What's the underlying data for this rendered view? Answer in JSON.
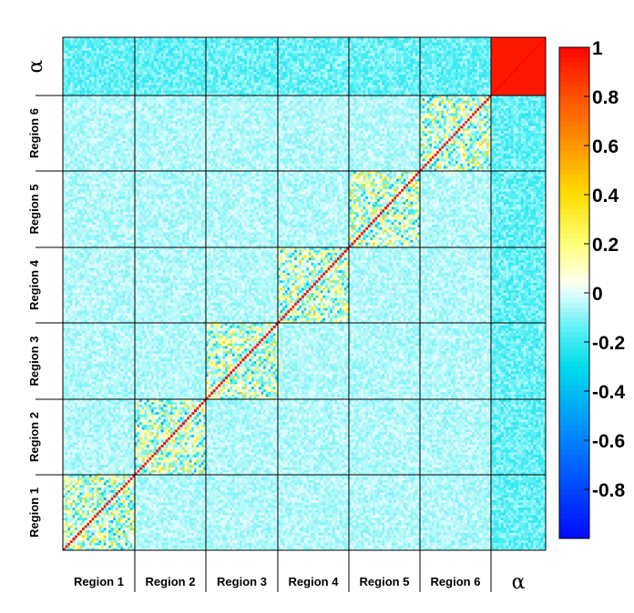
{
  "chart_data": {
    "type": "heatmap",
    "title": "",
    "blocks": [
      "Region 1",
      "Region 2",
      "Region 3",
      "Region 4",
      "Region 5",
      "Region 6",
      "α"
    ],
    "x_labels": [
      "Region 1",
      "Region 2",
      "Region 3",
      "Region 4",
      "Region 5",
      "Region 6",
      "α"
    ],
    "y_labels": [
      "Region 1",
      "Region 2",
      "Region 3",
      "Region 4",
      "Region 5",
      "Region 6",
      "α"
    ],
    "zlim": [
      -1,
      1
    ],
    "colorbar": {
      "ticks": [
        {
          "value": 1,
          "label": "1"
        },
        {
          "value": 0.8,
          "label": "0.8"
        },
        {
          "value": 0.6,
          "label": "0.6"
        },
        {
          "value": 0.4,
          "label": "0.4"
        },
        {
          "value": 0.2,
          "label": "0.2"
        },
        {
          "value": 0,
          "label": "0"
        },
        {
          "value": -0.2,
          "label": "-0.2"
        },
        {
          "value": -0.4,
          "label": "-0.4"
        },
        {
          "value": -0.6,
          "label": "-0.6"
        },
        {
          "value": -0.8,
          "label": "-0.8"
        }
      ]
    },
    "diagonal_value": 1,
    "background_value": -0.05,
    "alpha_block_value": 0.95
  }
}
